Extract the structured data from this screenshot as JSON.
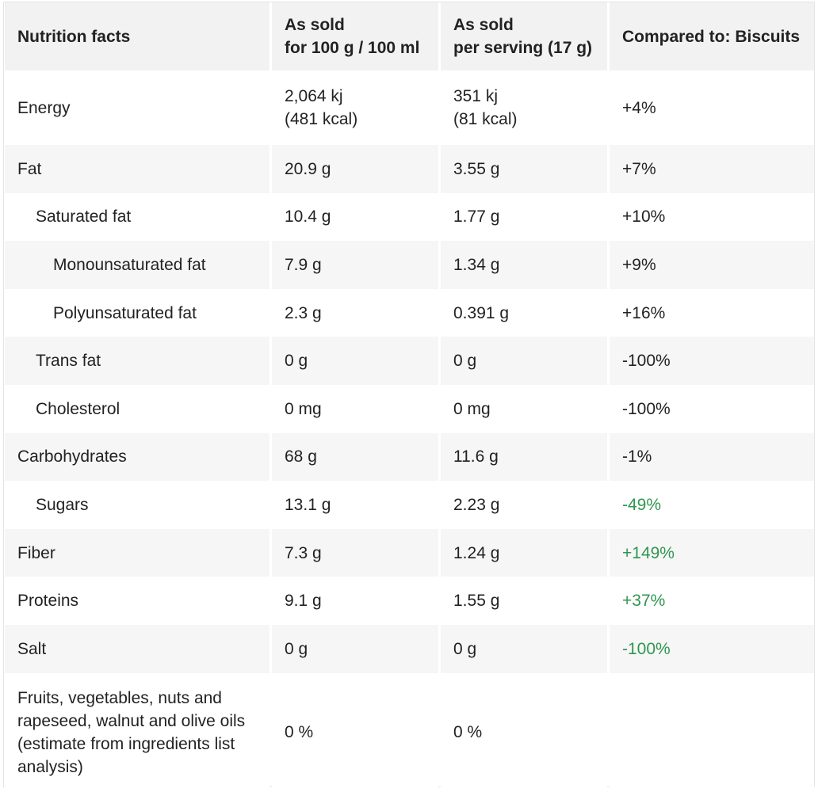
{
  "header": {
    "col1": "Nutrition facts",
    "col2_line1": "As sold",
    "col2_line2": "for 100 g / 100 ml",
    "col3_line1": "As sold",
    "col3_line2": "per serving (17 g)",
    "col4": "Compared to: Biscuits"
  },
  "rows": {
    "energy": {
      "label": "Energy",
      "per100_line1": "2,064 kj",
      "per100_line2": "(481 kcal)",
      "serving_line1": "351 kj",
      "serving_line2": "(81 kcal)",
      "compare": "+4%"
    },
    "fat": {
      "label": "Fat",
      "per100": "20.9 g",
      "serving": "3.55 g",
      "compare": "+7%"
    },
    "saturated_fat": {
      "label": "Saturated fat",
      "per100": "10.4 g",
      "serving": "1.77 g",
      "compare": "+10%"
    },
    "monounsaturated_fat": {
      "label": "Monounsaturated fat",
      "per100": "7.9 g",
      "serving": "1.34 g",
      "compare": "+9%"
    },
    "polyunsaturated_fat": {
      "label": "Polyunsaturated fat",
      "per100": "2.3 g",
      "serving": "0.391 g",
      "compare": "+16%"
    },
    "trans_fat": {
      "label": "Trans fat",
      "per100": "0 g",
      "serving": "0 g",
      "compare": "-100%"
    },
    "cholesterol": {
      "label": "Cholesterol",
      "per100": "0 mg",
      "serving": "0 mg",
      "compare": "-100%"
    },
    "carbohydrates": {
      "label": "Carbohydrates",
      "per100": "68 g",
      "serving": "11.6 g",
      "compare": "-1%"
    },
    "sugars": {
      "label": "Sugars",
      "per100": "13.1 g",
      "serving": "2.23 g",
      "compare": "-49%"
    },
    "fiber": {
      "label": "Fiber",
      "per100": "7.3 g",
      "serving": "1.24 g",
      "compare": "+149%"
    },
    "proteins": {
      "label": "Proteins",
      "per100": "9.1 g",
      "serving": "1.55 g",
      "compare": "+37%"
    },
    "salt": {
      "label": "Salt",
      "per100": "0 g",
      "serving": "0 g",
      "compare": "-100%"
    },
    "fruits_veg": {
      "label": "Fruits, vegetables, nuts and rapeseed, walnut and olive oils (estimate from ingredients list analysis)",
      "per100": "0 %",
      "serving": "0 %",
      "compare": ""
    }
  },
  "colors": {
    "good": "#2f9650",
    "header_bg": "#f2f2f2",
    "alt_row_bg": "#f6f6f6",
    "text": "#222222"
  }
}
